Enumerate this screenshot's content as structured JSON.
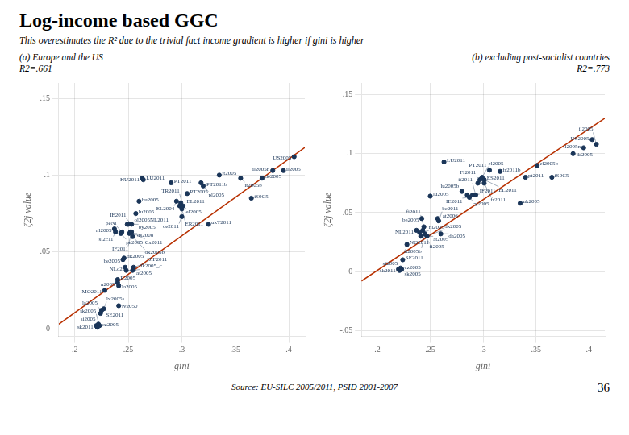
{
  "title": "Log-income based GGC",
  "subtitle": "This overestimates the R² due to the trivial fact income gradient is higher if gini is higher",
  "annotations": [
    "Source: EU-SILC 2005/2011, PSID 2001-2007",
    "36"
  ],
  "chart_data": [
    {
      "type": "scatter",
      "title": "(a)   Europe and the US",
      "annotations": [
        "R2=.661"
      ],
      "xlabel": "gini",
      "ylabel": "ζ2j value",
      "xlim": [
        0.185,
        0.415
      ],
      "ylim": [
        -0.005,
        0.16
      ],
      "xticks": [
        {
          "value": 0.2,
          "label": ".2"
        },
        {
          "value": 0.25,
          "label": ".25"
        },
        {
          "value": 0.3,
          "label": ".3"
        },
        {
          "value": 0.35,
          "label": ".35"
        },
        {
          "value": 0.4,
          "label": ".4"
        }
      ],
      "yticks": [
        0,
        {
          "value": 0.05,
          "label": ".05"
        },
        {
          "value": 0.1,
          "label": ".1"
        },
        {
          "value": 0.15,
          "label": ".15"
        }
      ],
      "grid": true,
      "series": [
        {
          "type": "scatter",
          "color": "#1a3558",
          "x": [
            0.22,
            0.221,
            0.222,
            0.223,
            0.224,
            0.225,
            0.227,
            0.228,
            0.237,
            0.238,
            0.24,
            0.24,
            0.241,
            0.241,
            0.243,
            0.244,
            0.245,
            0.246,
            0.247,
            0.248,
            0.249,
            0.25,
            0.251,
            0.252,
            0.253,
            0.253,
            0.254,
            0.254,
            0.255,
            0.257,
            0.26,
            0.263,
            0.264,
            0.29,
            0.295,
            0.298,
            0.299,
            0.3,
            0.301,
            0.3,
            0.305,
            0.318,
            0.32,
            0.325,
            0.335,
            0.355,
            0.365,
            0.375,
            0.385,
            0.395,
            0.405
          ],
          "values": [
            0.002,
            0.001,
            0.003,
            0.002,
            0.01,
            0.012,
            0.013,
            0.025,
            0.065,
            0.063,
            0.03,
            0.032,
            0.028,
            0.015,
            0.062,
            0.063,
            0.045,
            0.046,
            0.04,
            0.038,
            0.068,
            0.068,
            0.062,
            0.063,
            0.063,
            0.068,
            0.06,
            0.038,
            0.04,
            0.075,
            0.083,
            0.098,
            0.097,
            0.095,
            0.083,
            0.08,
            0.082,
            0.078,
            0.08,
            0.073,
            0.088,
            0.095,
            0.093,
            0.068,
            0.1,
            0.098,
            0.085,
            0.098,
            0.103,
            0.103,
            0.112
          ],
          "point_labels": [
            "sk2011",
            "cz2005",
            "si2005",
            "sk2005",
            "SE2011",
            "la2005",
            "lv2005s",
            "MO2011",
            "nl2005",
            "sl2c11",
            "n2005",
            "R2005",
            "la2005",
            "lv2050",
            "pe2005",
            "peNl",
            "be2005",
            "dk2005",
            "NLc2",
            "at2005",
            "ol2005NL2011",
            "by2005",
            "ds2008",
            "Cx2011",
            "IF2011",
            "IE2011",
            "dk2005b",
            "dk2005_c",
            "DIF2011",
            "lu2005",
            "hu2005",
            "HU2011",
            "LU2011",
            "PT2011",
            "EL2004",
            "EL2011",
            "el2005",
            "ER2011",
            "TR2011",
            "de2011",
            "PT2005",
            "PT2011b",
            "pl2005",
            "ukT2011",
            "it2005",
            "it2005b",
            "iS0C5",
            "de2005",
            "il2005n",
            "il2005",
            "US2005"
          ]
        },
        {
          "type": "line",
          "color": "#b83000",
          "x": [
            0.185,
            0.415
          ],
          "values": [
            0.003,
            0.118
          ]
        }
      ]
    },
    {
      "type": "scatter",
      "title": "(b) excluding post-socialist countries",
      "annotations": [
        "R2=.773"
      ],
      "xlabel": "gini",
      "ylabel": "ζ2j value",
      "xlim": [
        0.185,
        0.415
      ],
      "ylim": [
        -0.055,
        0.16
      ],
      "xticks": [
        {
          "value": 0.2,
          "label": ".2"
        },
        {
          "value": 0.25,
          "label": ".25"
        },
        {
          "value": 0.3,
          "label": ".3"
        },
        {
          "value": 0.35,
          "label": ".35"
        },
        {
          "value": 0.4,
          "label": ".4"
        }
      ],
      "yticks": [
        {
          "value": -0.05,
          "label": "-.05"
        },
        0,
        {
          "value": 0.05,
          "label": ".05"
        },
        {
          "value": 0.1,
          "label": ".1"
        },
        {
          "value": 0.15,
          "label": ".15"
        }
      ],
      "grid": true,
      "series": [
        {
          "type": "scatter",
          "color": "#1a3558",
          "x": [
            0.22,
            0.221,
            0.222,
            0.223,
            0.224,
            0.228,
            0.237,
            0.24,
            0.241,
            0.242,
            0.243,
            0.244,
            0.245,
            0.247,
            0.25,
            0.257,
            0.258,
            0.26,
            0.263,
            0.28,
            0.285,
            0.287,
            0.29,
            0.293,
            0.295,
            0.297,
            0.299,
            0.301,
            0.301,
            0.306,
            0.316,
            0.335,
            0.34,
            0.351,
            0.365,
            0.385,
            0.395,
            0.403,
            0.407
          ],
          "values": [
            0.002,
            0.001,
            0.003,
            0.002,
            0.01,
            0.023,
            0.035,
            0.033,
            0.03,
            0.045,
            0.035,
            0.038,
            0.032,
            0.03,
            0.064,
            0.045,
            0.043,
            0.032,
            0.093,
            0.068,
            0.065,
            0.063,
            0.065,
            0.065,
            0.075,
            0.078,
            0.08,
            0.078,
            0.075,
            0.086,
            0.085,
            0.058,
            0.08,
            0.09,
            0.08,
            0.1,
            0.105,
            0.112,
            0.108
          ],
          "point_labels": [
            "sk2011",
            "cz2005",
            "si2005",
            "sk2005",
            "SE2011",
            "NO2011",
            "NL2011",
            "nl2005",
            "at2005",
            "be2005",
            "fi2005",
            "fi2011",
            "fi2005b",
            "dk2005",
            "lu2005",
            "at2006",
            "be2011",
            "da2005",
            "LU2011",
            "lu2005b",
            "cy2005",
            "IE2011",
            "IF2011",
            "it2011",
            "ES2011",
            "FI2011",
            "el2005",
            "EL2011",
            "fr2011",
            "PT2011",
            "fr2011b",
            "uk2005",
            "pt2011",
            "el2005b",
            "iS0C5",
            "de2005",
            "il2005n",
            "US2005",
            "il2005"
          ]
        },
        {
          "type": "line",
          "color": "#b83000",
          "x": [
            0.185,
            0.415
          ],
          "values": [
            -0.008,
            0.13
          ]
        }
      ]
    }
  ]
}
